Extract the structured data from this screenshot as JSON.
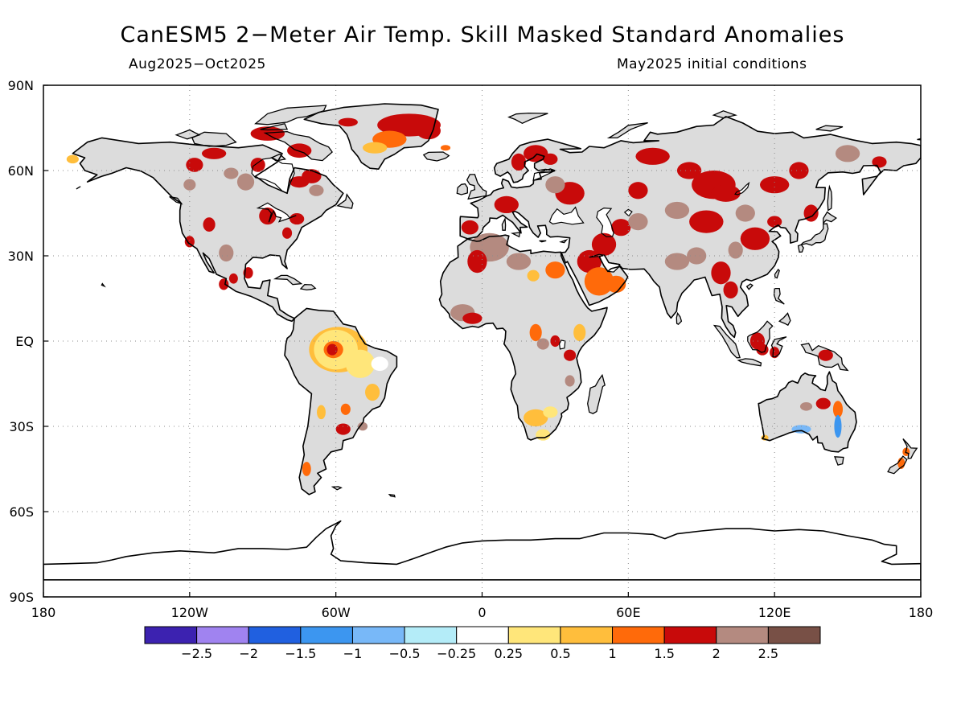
{
  "title": "CanESM5 2−Meter Air Temp. Skill Masked Standard Anomalies",
  "subtitle_left": "Aug2025−Oct2025",
  "subtitle_right": "May2025 initial conditions",
  "map": {
    "projection": "plate-carree",
    "lon_range": [
      -180,
      180
    ],
    "lat_range": [
      -90,
      90
    ],
    "grid": "dotted",
    "lon_ticks": [
      "180",
      "120W",
      "60W",
      "0",
      "60E",
      "120E",
      "180"
    ],
    "lat_ticks": [
      "90N",
      "60N",
      "30N",
      "EQ",
      "30S",
      "60S",
      "90S"
    ],
    "land_no_skill_color": "#dcdcdc"
  },
  "legend": {
    "colors": [
      "#3c22b0",
      "#a083f0",
      "#2060e0",
      "#3c96f0",
      "#78b8f8",
      "#b4ecf8",
      "#ffffff",
      "#ffe67a",
      "#ffbe3c",
      "#ff6a0a",
      "#c80a0a",
      "#b48a80",
      "#785046"
    ],
    "labels": [
      "−2.5",
      "−2",
      "−1.5",
      "−1",
      "−0.5",
      "−0.25",
      "0.25",
      "0.5",
      "1",
      "1.5",
      "2",
      "2.5"
    ]
  }
}
